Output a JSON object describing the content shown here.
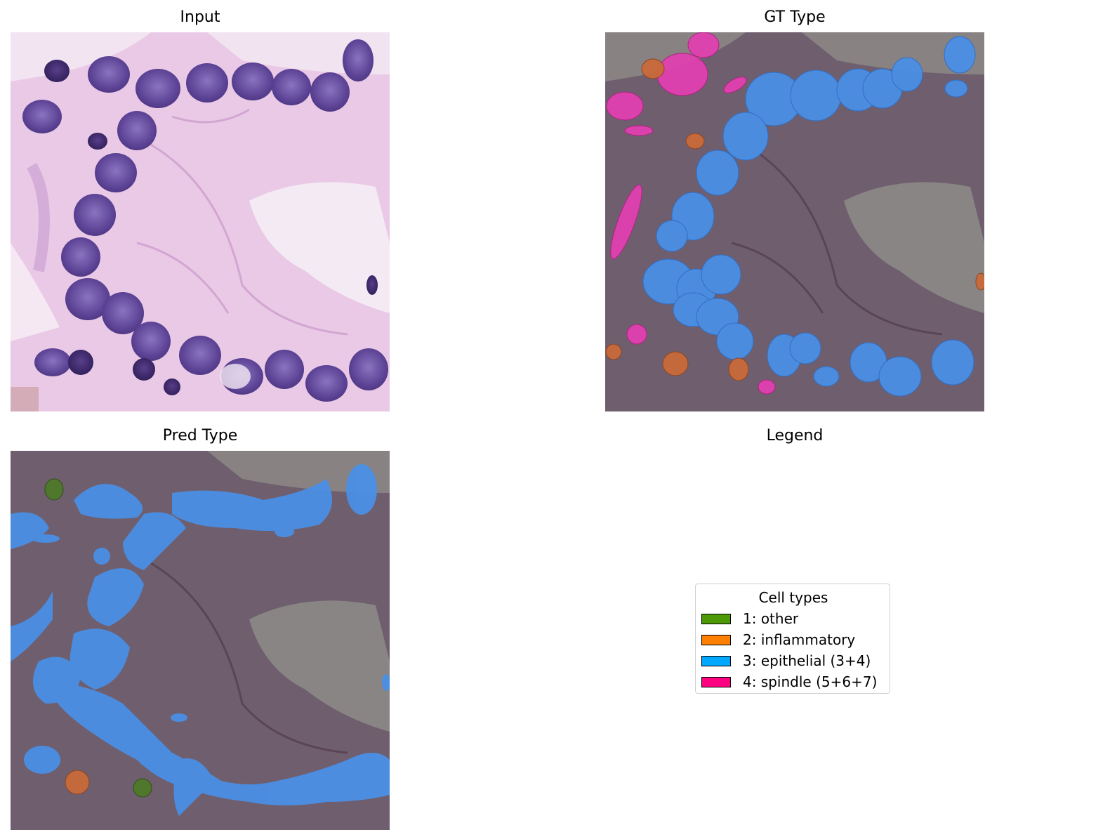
{
  "panels": {
    "input": {
      "title": "Input"
    },
    "gt_type": {
      "title": "GT Type"
    },
    "pred_type": {
      "title": "Pred Type"
    },
    "legend": {
      "title": "Legend"
    }
  },
  "legend": {
    "title": "Cell types",
    "items": [
      {
        "label": "1: other",
        "color": "#4e9a06"
      },
      {
        "label": "2: inflammatory",
        "color": "#ff7f00"
      },
      {
        "label": "3: epithelial (3+4)",
        "color": "#00a8ff"
      },
      {
        "label": "4: spindle (5+6+7)",
        "color": "#ff0080"
      }
    ]
  },
  "colors": {
    "tissue_pink": "#e6c4e2",
    "nucleus_purple": "#6e55a8",
    "overlay_gray": "#7a6f7a",
    "epithelial_overlay": "#4a90e8",
    "spindle_overlay": "#e040b0",
    "inflammatory_overlay": "#d0703a",
    "other_overlay": "#4f7a2a"
  }
}
